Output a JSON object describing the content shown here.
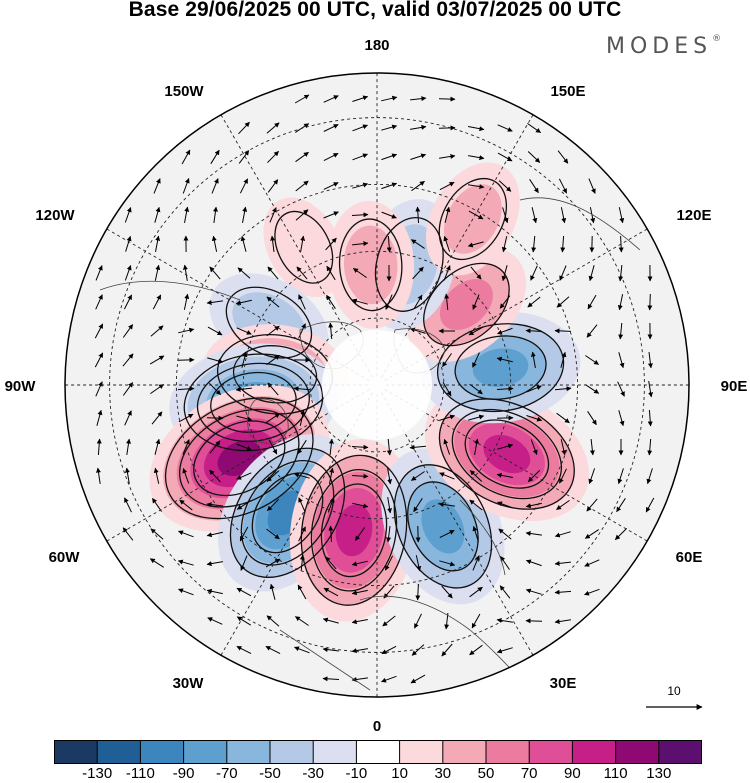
{
  "title": "Base 29/06/2025 00 UTC, valid 03/07/2025 00 UTC",
  "brand": "MODES",
  "brand_mark": "®",
  "longitude_labels": {
    "n180": "180",
    "e150": "150E",
    "e120": "120E",
    "e90": "90E",
    "e60": "60E",
    "e30": "30E",
    "zero": "0",
    "w30": "30W",
    "w60": "60W",
    "w90": "90W",
    "w120": "120W",
    "w150": "150W"
  },
  "reference_vector": {
    "magnitude": "10"
  },
  "colorbar": {
    "colors": [
      "#1a3a63",
      "#1f5f96",
      "#3d86bd",
      "#5d9fce",
      "#88b6dc",
      "#b4c9e6",
      "#dcdff0",
      "#ffffff",
      "#fbd9dc",
      "#f3a9b6",
      "#eb7ca0",
      "#e04e98",
      "#c61f88",
      "#8e0a72",
      "#5c0f6e"
    ],
    "labels": [
      "-130",
      "-110",
      "-90",
      "-70",
      "-50",
      "-30",
      "-10",
      "10",
      "30",
      "50",
      "70",
      "90",
      "110",
      "130"
    ]
  },
  "field_anomalies": [
    {
      "lon_deg": -152,
      "lat_deg": 55,
      "sign": "positive",
      "value": 18
    },
    {
      "lon_deg": -120,
      "lat_deg": 62,
      "sign": "negative",
      "value": -42
    },
    {
      "lon_deg": -96,
      "lat_deg": 67,
      "sign": "positive",
      "value": 62
    },
    {
      "lon_deg": -82,
      "lat_deg": 62,
      "sign": "negative",
      "value": -88
    },
    {
      "lon_deg": -62,
      "lat_deg": 55,
      "sign": "positive",
      "value": 112
    },
    {
      "lon_deg": -35,
      "lat_deg": 55,
      "sign": "negative",
      "value": -92
    },
    {
      "lon_deg": -9,
      "lat_deg": 57,
      "sign": "positive",
      "value": 104
    },
    {
      "lon_deg": 25,
      "lat_deg": 55,
      "sign": "negative",
      "value": -82
    },
    {
      "lon_deg": 62,
      "lat_deg": 57,
      "sign": "positive",
      "value": 94
    },
    {
      "lon_deg": 98,
      "lat_deg": 62,
      "sign": "negative",
      "value": -78
    },
    {
      "lon_deg": 132,
      "lat_deg": 63,
      "sign": "positive",
      "value": 52
    },
    {
      "lon_deg": 165,
      "lat_deg": 62,
      "sign": "negative",
      "value": -48
    },
    {
      "lon_deg": 183,
      "lat_deg": 63,
      "sign": "positive",
      "value": 42
    },
    {
      "lon_deg": 150,
      "lat_deg": 47,
      "sign": "positive",
      "value": 35
    }
  ]
}
